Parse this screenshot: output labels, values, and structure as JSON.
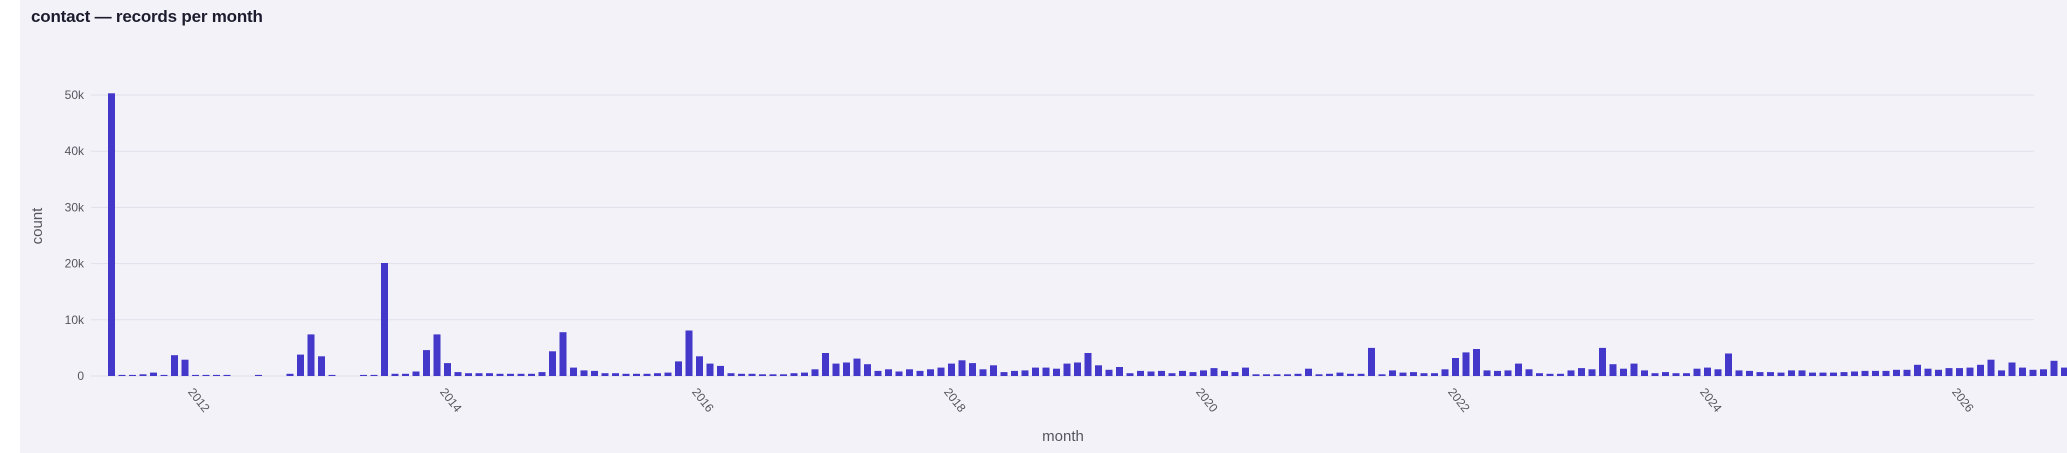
{
  "title": "contact — records per month",
  "colors": {
    "bar": "#4338ca",
    "background": "#f3f2f8",
    "grid": "#e1e0ea"
  },
  "chart_data": {
    "type": "bar",
    "title": "contact — records per month",
    "xlabel": "month",
    "ylabel": "count",
    "ylim": [
      0,
      50000
    ],
    "yticks": [
      0,
      10000,
      20000,
      30000,
      40000,
      50000
    ],
    "ytick_labels": [
      "0",
      "10k",
      "20k",
      "30k",
      "40k",
      "50k"
    ],
    "xticks": [
      "2012",
      "2014",
      "2016",
      "2018",
      "2020",
      "2022",
      "2024",
      "2026"
    ],
    "grid": true,
    "start": "2011-05",
    "values": [
      50300,
      200,
      200,
      300,
      600,
      200,
      3700,
      2900,
      200,
      200,
      200,
      200,
      0,
      0,
      200,
      0,
      0,
      400,
      3800,
      7400,
      3500,
      200,
      0,
      0,
      200,
      200,
      20100,
      400,
      400,
      800,
      4600,
      7400,
      2300,
      700,
      500,
      500,
      500,
      400,
      400,
      400,
      400,
      700,
      4400,
      7800,
      1500,
      1000,
      900,
      500,
      500,
      400,
      400,
      400,
      500,
      600,
      2600,
      8100,
      3500,
      2200,
      1800,
      500,
      400,
      400,
      300,
      300,
      300,
      500,
      600,
      1200,
      4100,
      2200,
      2400,
      3100,
      2100,
      900,
      1200,
      800,
      1200,
      900,
      1200,
      1500,
      2200,
      2800,
      2300,
      1200,
      1900,
      700,
      900,
      1000,
      1500,
      1500,
      1300,
      2200,
      2400,
      4100,
      1900,
      1100,
      1600,
      500,
      900,
      800,
      900,
      500,
      900,
      700,
      1000,
      1400,
      900,
      700,
      1500,
      300,
      300,
      300,
      300,
      400,
      1300,
      300,
      400,
      600,
      400,
      400,
      5000,
      300,
      1000,
      600,
      700,
      500,
      500,
      1200,
      3200,
      4200,
      4800,
      1000,
      900,
      1000,
      2200,
      1200,
      500,
      400,
      400,
      1000,
      1400,
      1200,
      5000,
      2100,
      1300,
      2200,
      1000,
      500,
      700,
      500,
      500,
      1300,
      1500,
      1200,
      4000,
      1000,
      900,
      700,
      700,
      600,
      1000,
      1000,
      600,
      600,
      600,
      700,
      800,
      900,
      900,
      900,
      1100,
      1100,
      2000,
      1300,
      1100,
      1400,
      1400,
      1500,
      2000,
      2900,
      1000,
      2400,
      1500,
      1100,
      1200,
      2700,
      1500,
      300
    ]
  }
}
